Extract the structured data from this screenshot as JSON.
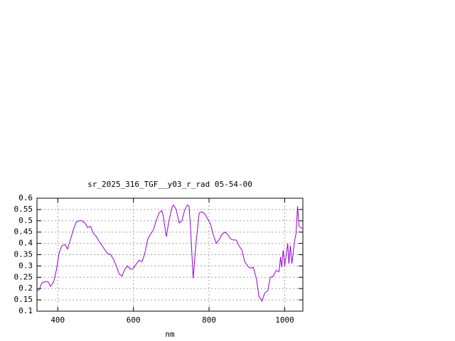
{
  "chart_data": {
    "type": "line",
    "title": "sr_2025_316_TGF__y03_r_rad 05-54-00",
    "xlabel": "nm",
    "x": [
      345,
      351,
      358,
      366,
      374,
      381,
      389,
      396,
      404,
      411,
      419,
      426,
      434,
      442,
      449,
      457,
      464,
      472,
      479,
      487,
      494,
      502,
      509,
      517,
      525,
      532,
      540,
      547,
      555,
      562,
      570,
      577,
      585,
      592,
      600,
      608,
      615,
      623,
      630,
      638,
      645,
      653,
      660,
      668,
      675,
      679,
      687,
      694,
      702,
      706,
      713,
      721,
      728,
      736,
      743,
      747,
      751,
      758,
      766,
      774,
      781,
      789,
      796,
      804,
      811,
      819,
      826,
      834,
      842,
      849,
      857,
      864,
      872,
      879,
      887,
      894,
      902,
      909,
      917,
      925,
      932,
      940,
      947,
      955,
      962,
      970,
      977,
      985,
      989,
      992,
      996,
      1000,
      1008,
      1011,
      1015,
      1019,
      1026,
      1030,
      1034,
      1038,
      1048
    ],
    "series": [
      {
        "name": "sr_2025_316_TGF__y03_r_rad",
        "color": "#9400d3",
        "values": [
          0.19,
          0.195,
          0.225,
          0.23,
          0.23,
          0.21,
          0.23,
          0.28,
          0.36,
          0.39,
          0.395,
          0.375,
          0.42,
          0.465,
          0.495,
          0.5,
          0.5,
          0.49,
          0.47,
          0.475,
          0.445,
          0.43,
          0.41,
          0.39,
          0.37,
          0.355,
          0.35,
          0.33,
          0.3,
          0.265,
          0.255,
          0.285,
          0.3,
          0.285,
          0.29,
          0.31,
          0.325,
          0.32,
          0.355,
          0.42,
          0.44,
          0.46,
          0.5,
          0.535,
          0.545,
          0.52,
          0.43,
          0.5,
          0.56,
          0.57,
          0.55,
          0.49,
          0.5,
          0.55,
          0.57,
          0.565,
          0.47,
          0.245,
          0.41,
          0.535,
          0.54,
          0.53,
          0.51,
          0.485,
          0.44,
          0.4,
          0.415,
          0.44,
          0.45,
          0.44,
          0.42,
          0.415,
          0.415,
          0.39,
          0.37,
          0.32,
          0.3,
          0.29,
          0.295,
          0.245,
          0.165,
          0.145,
          0.18,
          0.19,
          0.25,
          0.255,
          0.28,
          0.275,
          0.34,
          0.295,
          0.37,
          0.3,
          0.4,
          0.31,
          0.39,
          0.31,
          0.41,
          0.445,
          0.565,
          0.475,
          0.465
        ]
      }
    ],
    "xlim": [
      345,
      1048
    ],
    "xticks": [
      400,
      600,
      800,
      1000
    ],
    "ylim": [
      0.1,
      0.6
    ],
    "yticks": [
      0.1,
      0.15,
      0.2,
      0.25,
      0.3,
      0.35,
      0.4,
      0.45,
      0.5,
      0.55,
      0.6
    ],
    "grid": true
  }
}
